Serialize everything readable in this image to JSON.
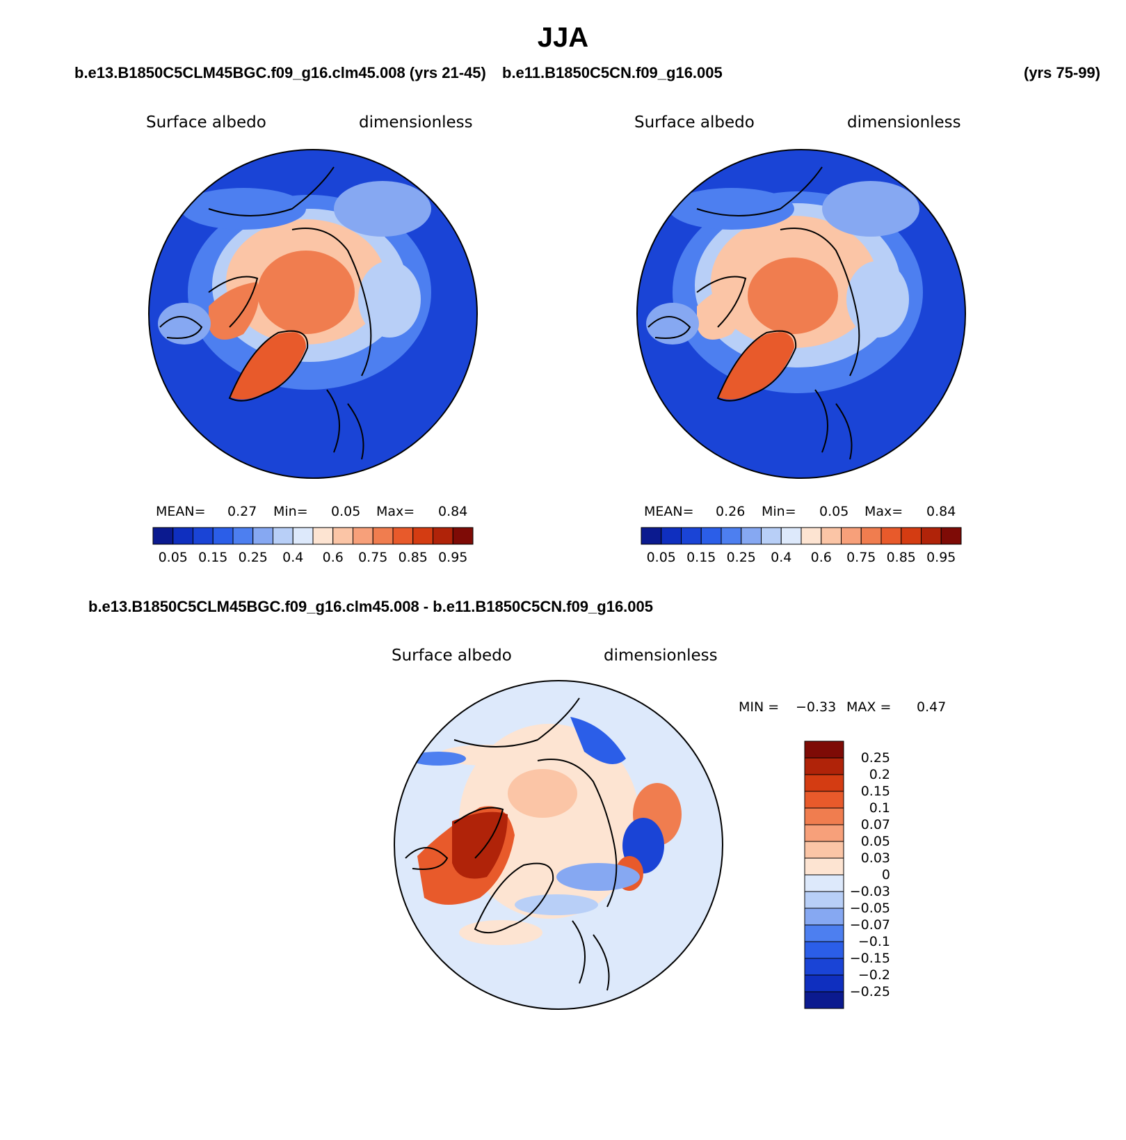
{
  "title": "JJA",
  "header": {
    "case1": "b.e13.B1850C5CLM45BGC.f09_g16.clm45.008 (yrs 21-45)",
    "case2": "b.e11.B1850C5CN.f09_g16.005",
    "case2_years": "(yrs 75-99)"
  },
  "panels": [
    {
      "variable": "Surface albedo",
      "units": "dimensionless",
      "stats": {
        "mean_label": "MEAN=",
        "mean": "0.27",
        "min_label": "Min=",
        "min": "0.05",
        "max_label": "Max=",
        "max": "0.84"
      },
      "colorbar_labels": [
        "0.05",
        "0.15",
        "0.25",
        "0.4",
        "0.6",
        "0.75",
        "0.85",
        "0.95"
      ]
    },
    {
      "variable": "Surface albedo",
      "units": "dimensionless",
      "stats": {
        "mean_label": "MEAN=",
        "mean": "0.26",
        "min_label": "Min=",
        "min": "0.05",
        "max_label": "Max=",
        "max": "0.84"
      },
      "colorbar_labels": [
        "0.05",
        "0.15",
        "0.25",
        "0.4",
        "0.6",
        "0.75",
        "0.85",
        "0.95"
      ]
    }
  ],
  "diff": {
    "title": "b.e13.B1850C5CLM45BGC.f09_g16.clm45.008 - b.e11.B1850C5CN.f09_g16.005",
    "variable": "Surface albedo",
    "units": "dimensionless",
    "min_label": "MIN =",
    "min": "−0.33",
    "max_label": "MAX =",
    "max": "0.47",
    "colorbar_labels": [
      "0.25",
      "0.2",
      "0.15",
      "0.1",
      "0.07",
      "0.05",
      "0.03",
      "0",
      "−0.03",
      "−0.05",
      "−0.07",
      "−0.1",
      "−0.15",
      "−0.2",
      "−0.25"
    ]
  },
  "colors": {
    "abs_scale": [
      "#0b1a8f",
      "#0f2fbf",
      "#1a44d6",
      "#2b5ee8",
      "#4d7ff0",
      "#86a8f2",
      "#b8cff7",
      "#dde9fb",
      "#fde4d2",
      "#fbc5a6",
      "#f7a07a",
      "#f07d4f",
      "#e85a2b",
      "#d43c12",
      "#b02309",
      "#7e0b06"
    ],
    "diff_scale": [
      "#7e0b06",
      "#b02309",
      "#d43c12",
      "#e85a2b",
      "#f07d4f",
      "#f7a07a",
      "#fbc5a6",
      "#fde4d2",
      "#dde9fb",
      "#b8cff7",
      "#86a8f2",
      "#4d7ff0",
      "#2b5ee8",
      "#1a44d6",
      "#0f2fbf",
      "#0b1a8f"
    ]
  }
}
